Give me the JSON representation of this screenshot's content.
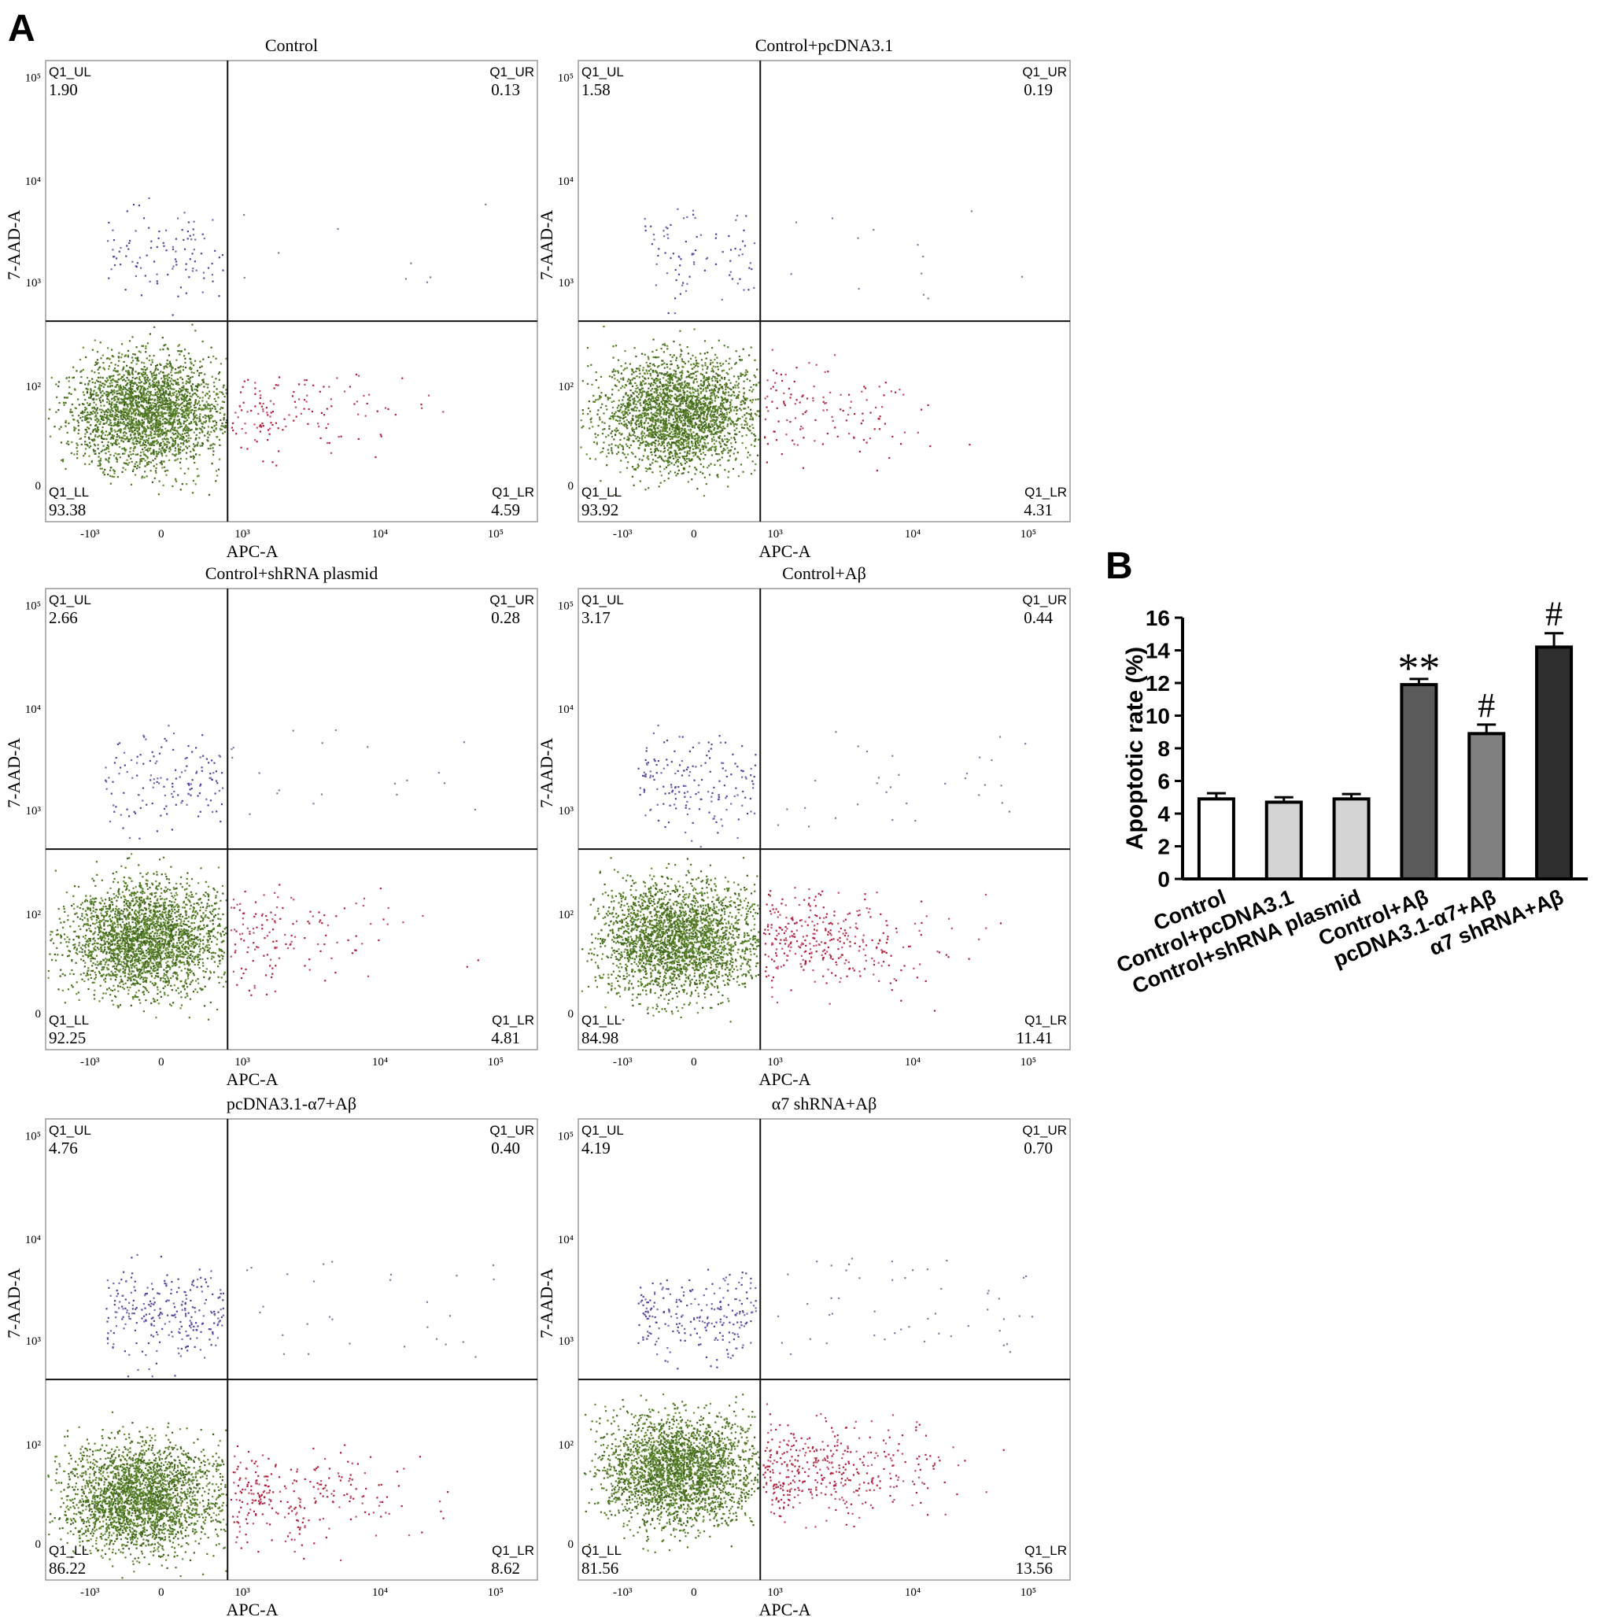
{
  "panel_labels": {
    "a": "A",
    "b": "B"
  },
  "chart_data": [
    {
      "type": "scatter",
      "title": "Control",
      "xlabel": "APC-A",
      "ylabel": "7-AAD-A",
      "x_ticks": [
        "-10³",
        "0",
        "10³",
        "10⁴",
        "10⁵"
      ],
      "y_ticks": [
        "0",
        "10²",
        "10³",
        "10⁴",
        "10⁵"
      ],
      "quadrants": {
        "UL": {
          "label": "Q1_UL",
          "value": "1.90"
        },
        "UR": {
          "label": "Q1_UR",
          "value": "0.13"
        },
        "LL": {
          "label": "Q1_LL",
          "value": "93.38"
        },
        "LR": {
          "label": "Q1_LR",
          "value": "4.59"
        }
      }
    },
    {
      "type": "scatter",
      "title": "Control+pcDNA3.1",
      "xlabel": "APC-A",
      "ylabel": "7-AAD-A",
      "x_ticks": [
        "-10³",
        "0",
        "10³",
        "10⁴",
        "10⁵"
      ],
      "y_ticks": [
        "0",
        "10²",
        "10³",
        "10⁴",
        "10⁵"
      ],
      "quadrants": {
        "UL": {
          "label": "Q1_UL",
          "value": "1.58"
        },
        "UR": {
          "label": "Q1_UR",
          "value": "0.19"
        },
        "LL": {
          "label": "Q1_LL",
          "value": "93.92"
        },
        "LR": {
          "label": "Q1_LR",
          "value": "4.31"
        }
      }
    },
    {
      "type": "scatter",
      "title": "Control+shRNA plasmid",
      "xlabel": "APC-A",
      "ylabel": "7-AAD-A",
      "x_ticks": [
        "-10³",
        "0",
        "10³",
        "10⁴",
        "10⁵"
      ],
      "y_ticks": [
        "0",
        "10²",
        "10³",
        "10⁴",
        "10⁵"
      ],
      "quadrants": {
        "UL": {
          "label": "Q1_UL",
          "value": "2.66"
        },
        "UR": {
          "label": "Q1_UR",
          "value": "0.28"
        },
        "LL": {
          "label": "Q1_LL",
          "value": "92.25"
        },
        "LR": {
          "label": "Q1_LR",
          "value": "4.81"
        }
      }
    },
    {
      "type": "scatter",
      "title": "Control+Aβ",
      "xlabel": "APC-A",
      "ylabel": "7-AAD-A",
      "x_ticks": [
        "-10³",
        "0",
        "10³",
        "10⁴",
        "10⁵"
      ],
      "y_ticks": [
        "0",
        "10²",
        "10³",
        "10⁴",
        "10⁵"
      ],
      "quadrants": {
        "UL": {
          "label": "Q1_UL",
          "value": "3.17"
        },
        "UR": {
          "label": "Q1_UR",
          "value": "0.44"
        },
        "LL": {
          "label": "Q1_LL",
          "value": "84.98"
        },
        "LR": {
          "label": "Q1_LR",
          "value": "11.41"
        }
      }
    },
    {
      "type": "scatter",
      "title": "pcDNA3.1-α7+Aβ",
      "xlabel": "APC-A",
      "ylabel": "7-AAD-A",
      "x_ticks": [
        "-10³",
        "0",
        "10³",
        "10⁴",
        "10⁵"
      ],
      "y_ticks": [
        "0",
        "10²",
        "10³",
        "10⁴",
        "10⁵"
      ],
      "quadrants": {
        "UL": {
          "label": "Q1_UL",
          "value": "4.76"
        },
        "UR": {
          "label": "Q1_UR",
          "value": "0.40"
        },
        "LL": {
          "label": "Q1_LL",
          "value": "86.22"
        },
        "LR": {
          "label": "Q1_LR",
          "value": "8.62"
        }
      }
    },
    {
      "type": "scatter",
      "title": "α7 shRNA+Aβ",
      "xlabel": "APC-A",
      "ylabel": "7-AAD-A",
      "x_ticks": [
        "-10³",
        "0",
        "10³",
        "10⁴",
        "10⁵"
      ],
      "y_ticks": [
        "0",
        "10²",
        "10³",
        "10⁴",
        "10⁵"
      ],
      "quadrants": {
        "UL": {
          "label": "Q1_UL",
          "value": "4.19"
        },
        "UR": {
          "label": "Q1_UR",
          "value": "0.70"
        },
        "LL": {
          "label": "Q1_LL",
          "value": "81.56"
        },
        "LR": {
          "label": "Q1_LR",
          "value": "13.56"
        }
      }
    },
    {
      "type": "bar",
      "ylabel": "Apoptotic rate (%)",
      "ylim": [
        0,
        16
      ],
      "y_ticks": [
        "0",
        "2",
        "4",
        "6",
        "8",
        "10",
        "12",
        "14",
        "16"
      ],
      "categories": [
        "Control",
        "Control+pcDNA3.1",
        "Control+shRNA plasmid",
        "Control+Aβ",
        "pcDNA3.1-α7+Aβ",
        "α7 shRNA+Aβ"
      ],
      "values": [
        4.9,
        4.7,
        4.9,
        11.9,
        8.9,
        14.2
      ],
      "errors": [
        0.35,
        0.3,
        0.3,
        0.35,
        0.55,
        0.85
      ],
      "annotations": [
        "",
        "",
        "",
        "**",
        "#",
        "#"
      ],
      "colors": [
        "#ffffff",
        "#d4d4d4",
        "#d4d4d4",
        "#5a5a5a",
        "#808080",
        "#2f2f2f"
      ]
    }
  ]
}
